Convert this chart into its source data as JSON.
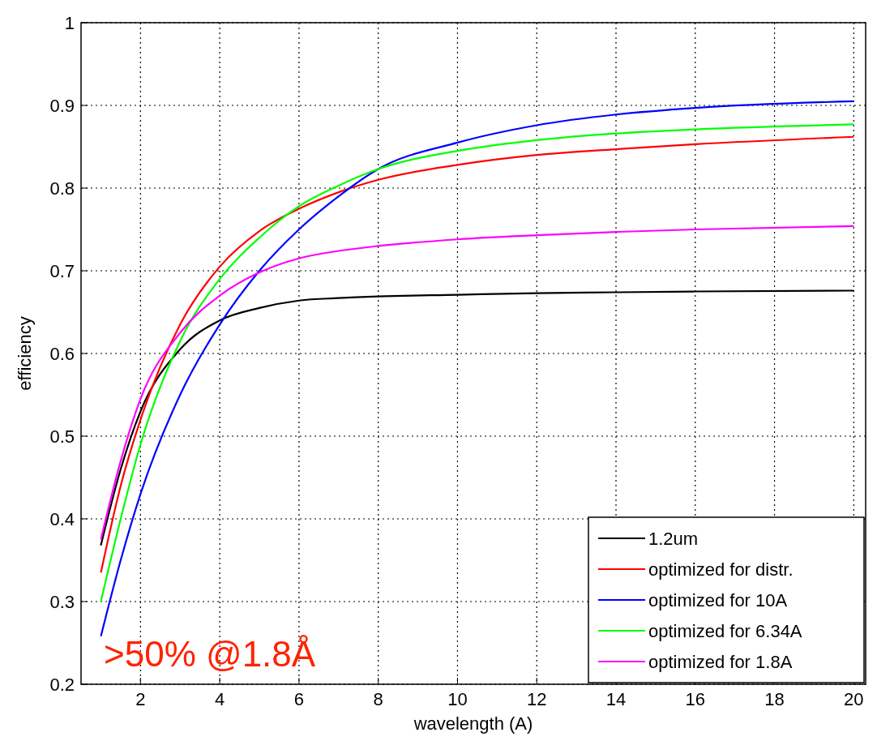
{
  "chart_data": {
    "type": "line",
    "xlabel": "wavelength (A)",
    "ylabel": "efficiency",
    "x": [
      1,
      1.5,
      2,
      3,
      4,
      5,
      6,
      7,
      8,
      10,
      12,
      14,
      16,
      20
    ],
    "xlim": [
      0.5,
      20.3
    ],
    "xticks": [
      2,
      4,
      6,
      8,
      10,
      12,
      14,
      16,
      18,
      20
    ],
    "ylim": [
      0.2,
      1
    ],
    "yticks": [
      0.2,
      0.3,
      0.4,
      0.5,
      0.6,
      0.7,
      0.8,
      0.9,
      1
    ],
    "grid": true,
    "legend": "bottom right",
    "marker": "none",
    "line_style": "solid",
    "annotations": [
      ">50% @1.8Å"
    ],
    "series": [
      {
        "name": "1.2um",
        "color": "#000000",
        "values": [
          0.368,
          0.46,
          0.53,
          0.605,
          0.64,
          0.655,
          0.664,
          0.667,
          0.669,
          0.671,
          0.673,
          0.674,
          0.675,
          0.676
        ]
      },
      {
        "name": "optimized for distr.",
        "color": "#ff0000",
        "values": [
          0.335,
          0.44,
          0.52,
          0.635,
          0.705,
          0.748,
          0.775,
          0.795,
          0.81,
          0.828,
          0.84,
          0.847,
          0.853,
          0.862
        ]
      },
      {
        "name": "optimized for 10A",
        "color": "#0000ff",
        "values": [
          0.258,
          0.35,
          0.43,
          0.55,
          0.635,
          0.7,
          0.75,
          0.79,
          0.823,
          0.855,
          0.876,
          0.889,
          0.897,
          0.905
        ]
      },
      {
        "name": "optimized for 6.34A",
        "color": "#00ff00",
        "values": [
          0.3,
          0.4,
          0.49,
          0.615,
          0.69,
          0.74,
          0.778,
          0.803,
          0.823,
          0.845,
          0.858,
          0.866,
          0.871,
          0.877
        ]
      },
      {
        "name": "optimized for 1.8A",
        "color": "#ff00ff",
        "values": [
          0.375,
          0.47,
          0.545,
          0.625,
          0.67,
          0.698,
          0.715,
          0.724,
          0.73,
          0.738,
          0.743,
          0.747,
          0.75,
          0.754
        ]
      }
    ]
  }
}
